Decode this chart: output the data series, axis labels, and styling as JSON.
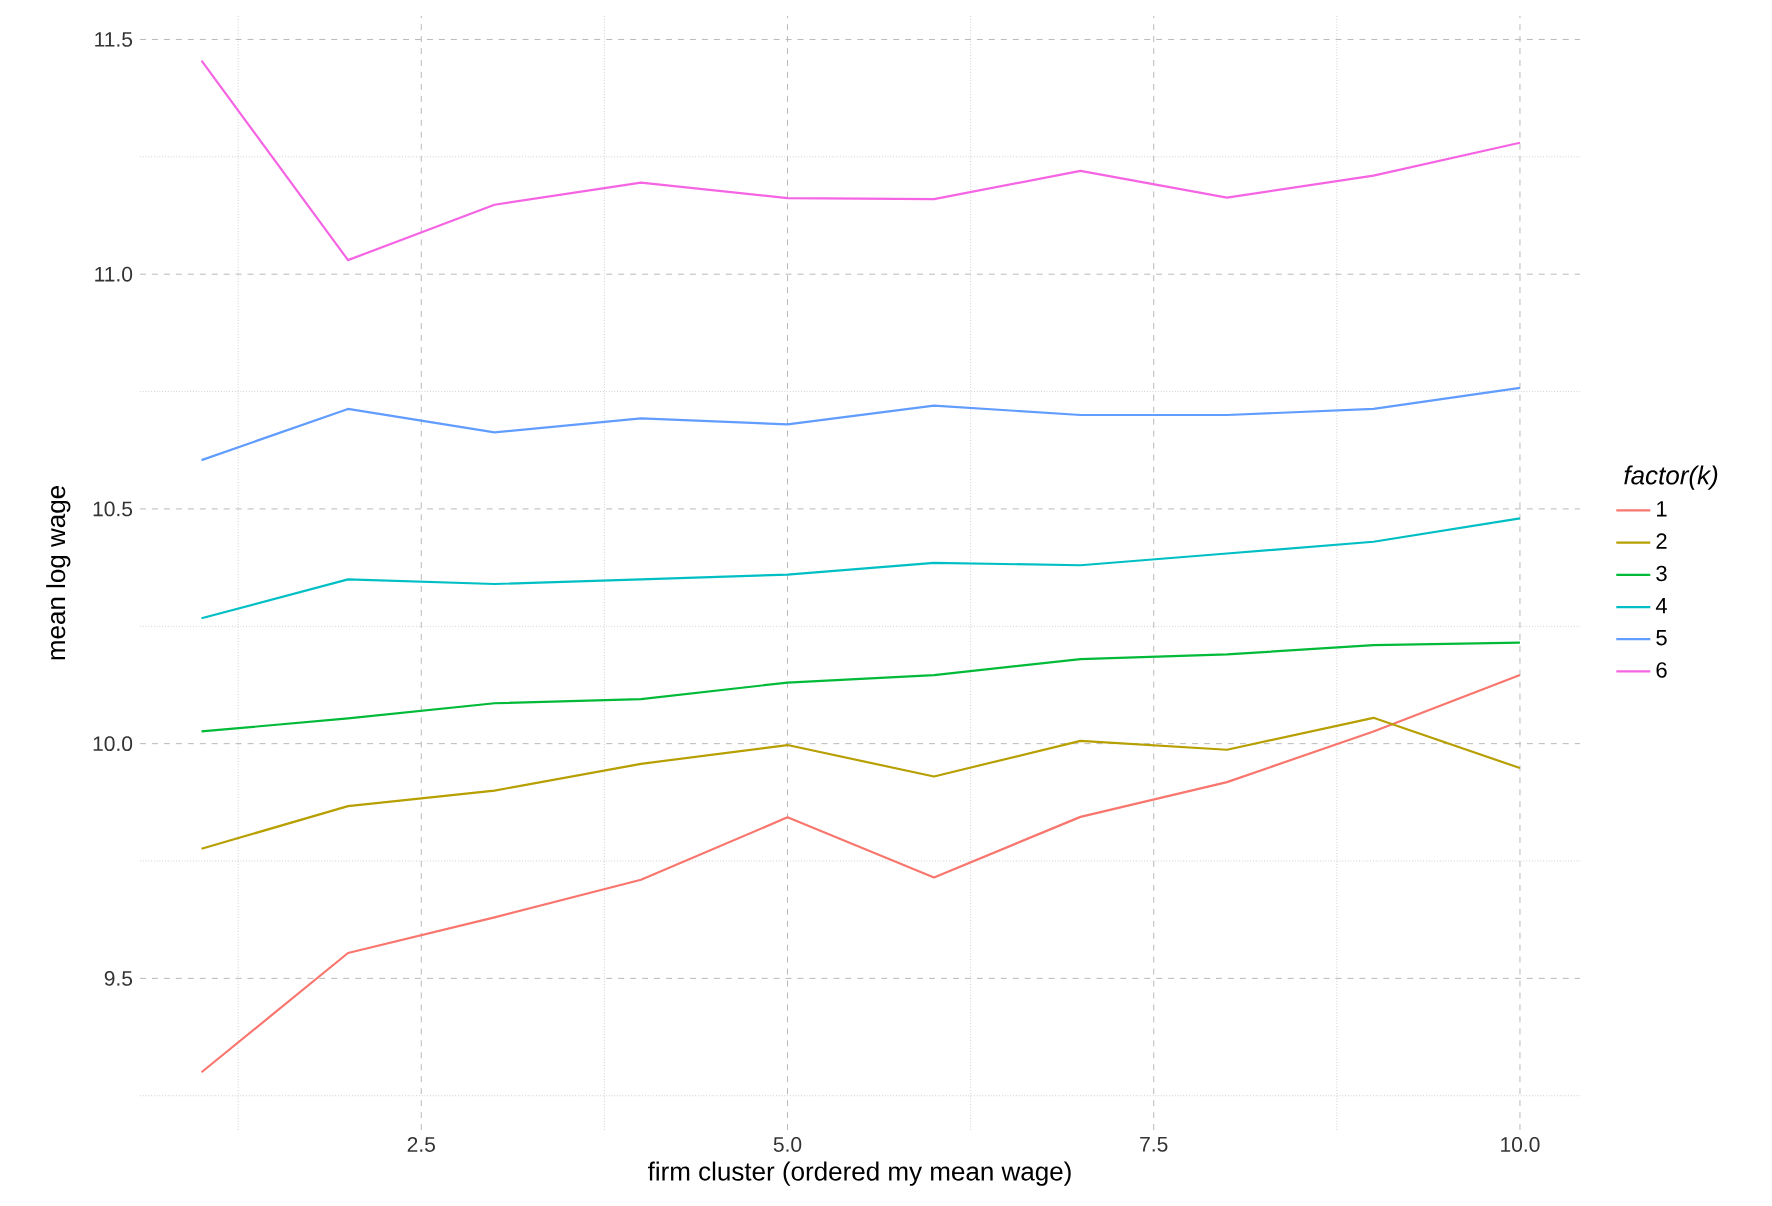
{
  "chart_data": {
    "type": "line",
    "xlabel": "firm cluster (ordered my mean wage)",
    "ylabel": "mean log wage",
    "legend_title": "factor(k)",
    "legend": "right",
    "grid": true,
    "marker": "none",
    "line_style": "solid",
    "x": [
      1,
      2,
      3,
      4,
      5,
      6,
      7,
      8,
      9,
      10
    ],
    "xlim": [
      0.58,
      10.41
    ],
    "xticks": [
      2.5,
      {
        "value": 5,
        "label": "5.0"
      },
      7.5,
      {
        "value": 10,
        "label": "10.0"
      }
    ],
    "ylim": [
      9.177,
      11.55
    ],
    "yticks": [
      9.5,
      {
        "value": 10,
        "label": "10.0"
      },
      10.5,
      {
        "value": 11,
        "label": "11.0"
      },
      11.5
    ],
    "series": [
      {
        "name": "1",
        "color": "#f8766d",
        "values": [
          9.3,
          9.554,
          9.63,
          9.71,
          9.843,
          9.715,
          9.844,
          9.918,
          10.026,
          10.146
        ]
      },
      {
        "name": "2",
        "color": "#b79f00",
        "values": [
          9.776,
          9.867,
          9.9,
          9.957,
          9.997,
          9.93,
          10.006,
          9.987,
          10.055,
          9.948
        ]
      },
      {
        "name": "3",
        "color": "#00ba38",
        "values": [
          10.026,
          10.054,
          10.086,
          10.095,
          10.13,
          10.146,
          10.18,
          10.19,
          10.21,
          10.215
        ]
      },
      {
        "name": "4",
        "color": "#00bfc4",
        "values": [
          10.267,
          10.35,
          10.34,
          10.35,
          10.36,
          10.385,
          10.38,
          10.405,
          10.43,
          10.48
        ]
      },
      {
        "name": "5",
        "color": "#619cff",
        "values": [
          10.604,
          10.713,
          10.663,
          10.693,
          10.68,
          10.72,
          10.7,
          10.7,
          10.713,
          10.758
        ]
      },
      {
        "name": "6",
        "color": "#f564e3",
        "values": [
          11.455,
          11.03,
          11.148,
          11.195,
          11.162,
          11.16,
          11.22,
          11.163,
          11.21,
          11.28
        ]
      }
    ]
  }
}
